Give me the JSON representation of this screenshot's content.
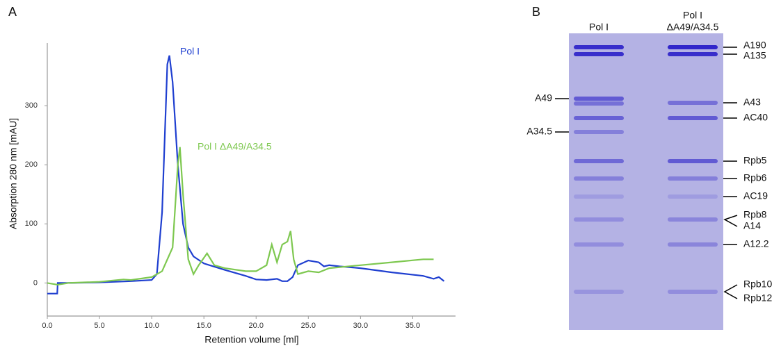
{
  "chart_data": {
    "type": "line",
    "panel_label": "A",
    "x_label": "Retention volume [ml]",
    "y_label": "Absorption 280 nm [mAU]",
    "xlim": [
      0,
      39.1
    ],
    "ylim": [
      -56,
      406
    ],
    "xticks": [
      {
        "value": 0,
        "label": "0.0"
      },
      {
        "value": 5,
        "label": "5.0"
      },
      {
        "value": 10,
        "label": "10.0"
      },
      {
        "value": 15,
        "label": "15.0"
      },
      {
        "value": 20,
        "label": "20.0"
      },
      {
        "value": 25,
        "label": "25.0"
      },
      {
        "value": 30,
        "label": "30.0"
      },
      {
        "value": 35,
        "label": "35.0"
      }
    ],
    "yticks": [
      0,
      100,
      200,
      300
    ],
    "series": [
      {
        "name": "Pol I",
        "color": "#1f3fd0",
        "x": [
          0,
          0.95,
          1.0,
          2,
          5,
          8,
          10,
          10.5,
          11,
          11.5,
          11.7,
          12.0,
          12.5,
          13,
          13.5,
          14,
          15,
          17,
          19,
          20,
          21,
          22,
          22.5,
          23,
          23.5,
          24,
          25,
          26,
          26.5,
          27,
          28,
          30,
          33,
          36,
          37,
          37.5,
          38
        ],
        "values": [
          -18,
          -18,
          0,
          0,
          1,
          3,
          5,
          15,
          120,
          370,
          385,
          340,
          200,
          100,
          60,
          45,
          33,
          22,
          12,
          6,
          5,
          7,
          3,
          3,
          10,
          30,
          38,
          35,
          28,
          30,
          28,
          25,
          18,
          12,
          7,
          10,
          3
        ]
      },
      {
        "name": "Pol I ΔA49/A34.5",
        "color": "#7ec850",
        "x": [
          0,
          1,
          2,
          5,
          7.3,
          8,
          10,
          11,
          12,
          12.5,
          12.7,
          13,
          13.5,
          14,
          14.5,
          15.3,
          16,
          17,
          19,
          20,
          21,
          21.5,
          22,
          22.5,
          23,
          23.3,
          23.6,
          24,
          25,
          26,
          27,
          30,
          33,
          36,
          37
        ],
        "values": [
          0,
          -3,
          0,
          2,
          6,
          5,
          10,
          20,
          60,
          200,
          230,
          150,
          40,
          15,
          30,
          50,
          30,
          25,
          20,
          20,
          30,
          65,
          35,
          65,
          70,
          88,
          40,
          15,
          20,
          18,
          25,
          30,
          35,
          40,
          40
        ]
      }
    ]
  },
  "panel_b": {
    "panel_label": "B",
    "lanes": [
      {
        "label_lines": [
          "Pol I"
        ]
      },
      {
        "label_lines": [
          "Pol I",
          "ΔA49/A34.5"
        ]
      }
    ],
    "left_labels": [
      "A49",
      "A34.5"
    ],
    "right_labels": [
      "A190",
      "A135",
      "A43",
      "AC40",
      "Rpb5",
      "Rpb6",
      "AC19",
      "Rpb8",
      "A14",
      "A12.2",
      "Rpb10",
      "Rpb12"
    ]
  }
}
